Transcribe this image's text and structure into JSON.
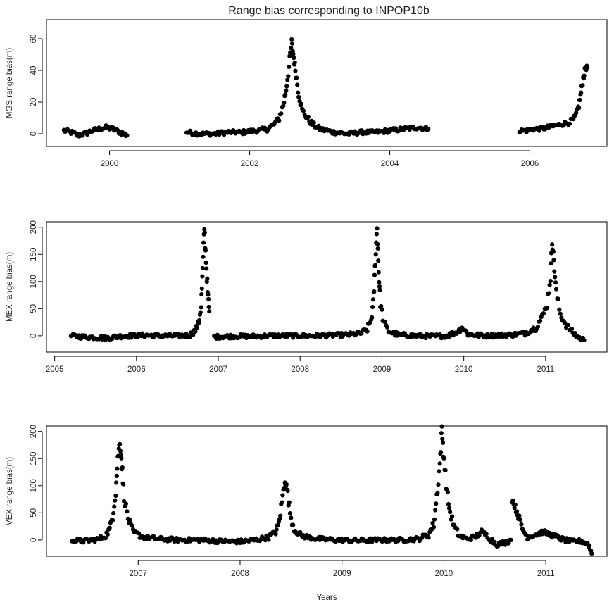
{
  "title": "Range bias corresponding to INPOP10b",
  "x_axis_label": "Years",
  "colors": {
    "points": "#000000",
    "frame": "#000000",
    "text": "#222222",
    "background": "#ffffff"
  },
  "chart_data": [
    {
      "type": "scatter",
      "ylabel": "MGS range bias(m)",
      "xlabel": "",
      "xlim": [
        1999.1,
        2007.1
      ],
      "ylim": [
        -8,
        72
      ],
      "xticks": [
        2000,
        2002,
        2004,
        2006
      ],
      "yticks": [
        0,
        20,
        40,
        60
      ],
      "grid": false,
      "segments": [
        [
          [
            1999.35,
            2
          ],
          [
            1999.45,
            1
          ],
          [
            1999.55,
            -1
          ],
          [
            1999.65,
            0
          ],
          [
            1999.75,
            2
          ],
          [
            1999.85,
            3
          ],
          [
            1999.95,
            4
          ],
          [
            2000.05,
            3
          ],
          [
            2000.15,
            1
          ],
          [
            2000.25,
            -1
          ]
        ],
        [
          [
            2001.1,
            1
          ],
          [
            2001.3,
            0
          ],
          [
            2001.5,
            0
          ],
          [
            2001.7,
            1
          ],
          [
            2001.9,
            1
          ],
          [
            2002.1,
            2
          ],
          [
            2002.25,
            3
          ],
          [
            2002.35,
            6
          ],
          [
            2002.42,
            10
          ],
          [
            2002.48,
            18
          ],
          [
            2002.52,
            28
          ],
          [
            2002.56,
            42
          ],
          [
            2002.6,
            58
          ],
          [
            2002.63,
            48
          ],
          [
            2002.66,
            38
          ],
          [
            2002.7,
            25
          ],
          [
            2002.75,
            15
          ],
          [
            2002.82,
            10
          ],
          [
            2002.9,
            6
          ],
          [
            2003.0,
            3
          ],
          [
            2003.2,
            1
          ],
          [
            2003.4,
            0
          ],
          [
            2003.6,
            1
          ],
          [
            2003.8,
            1
          ],
          [
            2004.0,
            2
          ],
          [
            2004.2,
            3
          ],
          [
            2004.4,
            4
          ],
          [
            2004.55,
            3
          ]
        ],
        [
          [
            2005.85,
            2
          ],
          [
            2005.95,
            2
          ],
          [
            2006.05,
            3
          ],
          [
            2006.15,
            3
          ],
          [
            2006.25,
            4
          ],
          [
            2006.35,
            5
          ],
          [
            2006.45,
            6
          ],
          [
            2006.55,
            7
          ],
          [
            2006.62,
            9
          ],
          [
            2006.66,
            12
          ],
          [
            2006.7,
            18
          ],
          [
            2006.73,
            26
          ],
          [
            2006.76,
            35
          ],
          [
            2006.79,
            41
          ],
          [
            2006.82,
            42
          ]
        ]
      ]
    },
    {
      "type": "scatter",
      "ylabel": "MEX range bias(m)",
      "xlabel": "",
      "xlim": [
        2004.9,
        2011.75
      ],
      "ylim": [
        -30,
        210
      ],
      "xticks": [
        2005,
        2006,
        2007,
        2008,
        2009,
        2010,
        2011
      ],
      "yticks": [
        0,
        50,
        100,
        150,
        200
      ],
      "grid": false,
      "segments": [
        [
          [
            2005.2,
            0
          ],
          [
            2005.35,
            -2
          ],
          [
            2005.5,
            -3
          ],
          [
            2005.65,
            -4
          ],
          [
            2005.8,
            -1
          ],
          [
            2005.95,
            0
          ],
          [
            2006.1,
            1
          ],
          [
            2006.3,
            0
          ],
          [
            2006.5,
            0
          ],
          [
            2006.65,
            1
          ],
          [
            2006.72,
            10
          ],
          [
            2006.76,
            25
          ],
          [
            2006.79,
            55
          ],
          [
            2006.81,
            120
          ],
          [
            2006.83,
            200
          ],
          [
            2006.85,
            140
          ],
          [
            2006.87,
            80
          ],
          [
            2006.89,
            45
          ]
        ],
        [
          [
            2006.95,
            -2
          ],
          [
            2007.15,
            -1
          ],
          [
            2007.4,
            -1
          ],
          [
            2007.65,
            0
          ],
          [
            2007.9,
            0
          ],
          [
            2008.15,
            0
          ],
          [
            2008.4,
            1
          ],
          [
            2008.6,
            2
          ],
          [
            2008.75,
            5
          ],
          [
            2008.82,
            12
          ],
          [
            2008.87,
            30
          ],
          [
            2008.9,
            70
          ],
          [
            2008.92,
            140
          ],
          [
            2008.94,
            200
          ],
          [
            2008.96,
            120
          ],
          [
            2008.98,
            60
          ],
          [
            2009.02,
            25
          ],
          [
            2009.08,
            8
          ],
          [
            2009.2,
            2
          ],
          [
            2009.4,
            0
          ],
          [
            2009.6,
            -1
          ],
          [
            2009.8,
            0
          ],
          [
            2009.93,
            8
          ],
          [
            2009.98,
            15
          ],
          [
            2010.05,
            3
          ],
          [
            2010.25,
            0
          ],
          [
            2010.45,
            1
          ],
          [
            2010.6,
            2
          ],
          [
            2010.75,
            5
          ],
          [
            2010.88,
            15
          ],
          [
            2010.96,
            35
          ],
          [
            2011.02,
            60
          ],
          [
            2011.06,
            110
          ],
          [
            2011.08,
            175
          ],
          [
            2011.1,
            140
          ],
          [
            2011.13,
            80
          ],
          [
            2011.18,
            40
          ],
          [
            2011.25,
            20
          ],
          [
            2011.32,
            8
          ],
          [
            2011.4,
            -3
          ],
          [
            2011.47,
            -8
          ]
        ]
      ]
    },
    {
      "type": "scatter",
      "ylabel": "VEX range bias(m)",
      "xlabel": "Years",
      "xlim": [
        2006.1,
        2011.6
      ],
      "ylim": [
        -30,
        210
      ],
      "xticks": [
        2007,
        2008,
        2009,
        2010,
        2011
      ],
      "yticks": [
        0,
        50,
        100,
        150,
        200
      ],
      "grid": false,
      "segments": [
        [
          [
            2006.35,
            0
          ],
          [
            2006.45,
            -2
          ],
          [
            2006.55,
            0
          ],
          [
            2006.62,
            2
          ],
          [
            2006.68,
            8
          ],
          [
            2006.72,
            20
          ],
          [
            2006.75,
            45
          ],
          [
            2006.78,
            90
          ],
          [
            2006.8,
            150
          ],
          [
            2006.82,
            182
          ],
          [
            2006.84,
            140
          ],
          [
            2006.86,
            80
          ],
          [
            2006.9,
            40
          ],
          [
            2006.95,
            15
          ],
          [
            2007.05,
            5
          ],
          [
            2007.2,
            2
          ],
          [
            2007.4,
            0
          ],
          [
            2007.6,
            0
          ],
          [
            2007.8,
            -2
          ],
          [
            2008.0,
            -3
          ],
          [
            2008.15,
            0
          ],
          [
            2008.28,
            5
          ],
          [
            2008.35,
            15
          ],
          [
            2008.38,
            30
          ],
          [
            2008.41,
            70
          ],
          [
            2008.44,
            110
          ],
          [
            2008.46,
            95
          ],
          [
            2008.49,
            50
          ],
          [
            2008.53,
            20
          ],
          [
            2008.6,
            8
          ],
          [
            2008.75,
            2
          ],
          [
            2008.95,
            0
          ],
          [
            2009.15,
            -1
          ],
          [
            2009.35,
            0
          ],
          [
            2009.55,
            0
          ],
          [
            2009.75,
            2
          ],
          [
            2009.85,
            10
          ],
          [
            2009.9,
            30
          ],
          [
            2009.93,
            80
          ],
          [
            2009.96,
            140
          ],
          [
            2009.98,
            203
          ],
          [
            2010.0,
            150
          ],
          [
            2010.03,
            90
          ],
          [
            2010.06,
            50
          ],
          [
            2010.1,
            25
          ],
          [
            2010.15,
            8
          ],
          [
            2010.22,
            2
          ],
          [
            2010.3,
            5
          ],
          [
            2010.37,
            15
          ],
          [
            2010.44,
            5
          ],
          [
            2010.52,
            -8
          ],
          [
            2010.6,
            -5
          ],
          [
            2010.66,
            0
          ]
        ],
        [
          [
            2010.67,
            75
          ],
          [
            2010.7,
            60
          ],
          [
            2010.73,
            45
          ],
          [
            2010.77,
            20
          ],
          [
            2010.82,
            5
          ],
          [
            2010.9,
            10
          ],
          [
            2010.97,
            15
          ],
          [
            2011.05,
            10
          ],
          [
            2011.15,
            2
          ],
          [
            2011.25,
            -3
          ],
          [
            2011.35,
            -2
          ],
          [
            2011.42,
            -8
          ],
          [
            2011.45,
            -25
          ]
        ]
      ]
    }
  ]
}
